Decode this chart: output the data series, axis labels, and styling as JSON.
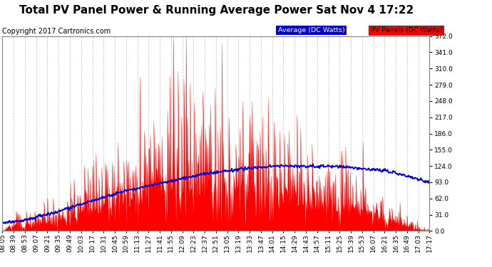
{
  "title": "Total PV Panel Power & Running Average Power Sat Nov 4 17:22",
  "copyright": "Copyright 2017 Cartronics.com",
  "legend_avg": "Average (DC Watts)",
  "legend_pv": "PV Panels (DC Watts)",
  "ymin": 0.0,
  "ymax": 372.0,
  "yticks": [
    0.0,
    31.0,
    62.0,
    93.0,
    124.0,
    155.0,
    186.0,
    217.0,
    248.0,
    279.0,
    310.0,
    341.0,
    372.0
  ],
  "xtick_labels": [
    "08:05",
    "08:39",
    "08:53",
    "09:07",
    "09:21",
    "09:35",
    "09:49",
    "10:03",
    "10:17",
    "10:31",
    "10:45",
    "10:59",
    "11:13",
    "11:27",
    "11:41",
    "11:55",
    "12:09",
    "12:23",
    "12:37",
    "12:51",
    "13:05",
    "13:19",
    "13:33",
    "13:47",
    "14:01",
    "14:15",
    "14:29",
    "14:43",
    "14:57",
    "15:11",
    "15:25",
    "15:39",
    "15:53",
    "16:07",
    "16:21",
    "16:35",
    "16:49",
    "17:03",
    "17:17"
  ],
  "bg_color": "#ffffff",
  "plot_bg_color": "#ffffff",
  "grid_color": "#cccccc",
  "pv_fill_color": "#ff0000",
  "avg_line_color": "#0000cc",
  "title_fontsize": 11,
  "copyright_fontsize": 7,
  "tick_fontsize": 6.5
}
